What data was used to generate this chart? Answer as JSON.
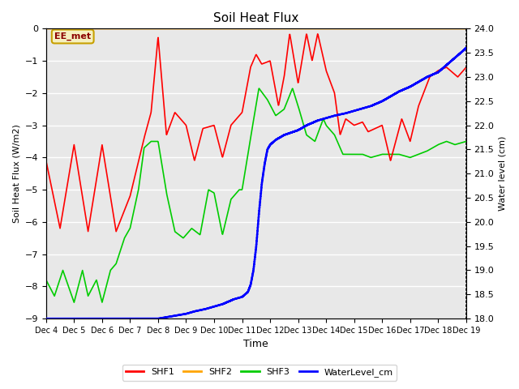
{
  "title": "Soil Heat Flux",
  "xlabel": "Time",
  "ylabel_left": "Soil Heat Flux (W/m2)",
  "ylabel_right": "Water level (cm)",
  "ylim_left": [
    -9.0,
    0.0
  ],
  "ylim_right": [
    18.0,
    24.0
  ],
  "yticks_left": [
    0.0,
    -1.0,
    -2.0,
    -3.0,
    -4.0,
    -5.0,
    -6.0,
    -7.0,
    -8.0,
    -9.0
  ],
  "yticks_right": [
    18.0,
    18.5,
    19.0,
    19.5,
    20.0,
    20.5,
    21.0,
    21.5,
    22.0,
    22.5,
    23.0,
    23.5,
    24.0
  ],
  "background_color": "#ffffff",
  "plot_bg_color": "#e8e8e8",
  "grid_color": "#ffffff",
  "annotation_text": "EE_met",
  "annotation_color": "#8B0000",
  "annotation_bg": "#f5f0c0",
  "annotation_border": "#c8a000",
  "shf2_color": "#FFA500",
  "shf1_color": "#FF0000",
  "shf3_color": "#00CC00",
  "water_color": "#0000FF",
  "legend_labels": [
    "SHF1",
    "SHF2",
    "SHF3",
    "WaterLevel_cm"
  ],
  "xtick_labels": [
    "Dec 4",
    "Dec 5",
    "Dec 6",
    "Dec 7",
    "Dec 8",
    "Dec 9",
    "Dec 10",
    "Dec 11",
    "Dec 12",
    "Dec 13",
    "Dec 14",
    "Dec 15",
    "Dec 16",
    "Dec 17",
    "Dec 18",
    "Dec 19"
  ]
}
